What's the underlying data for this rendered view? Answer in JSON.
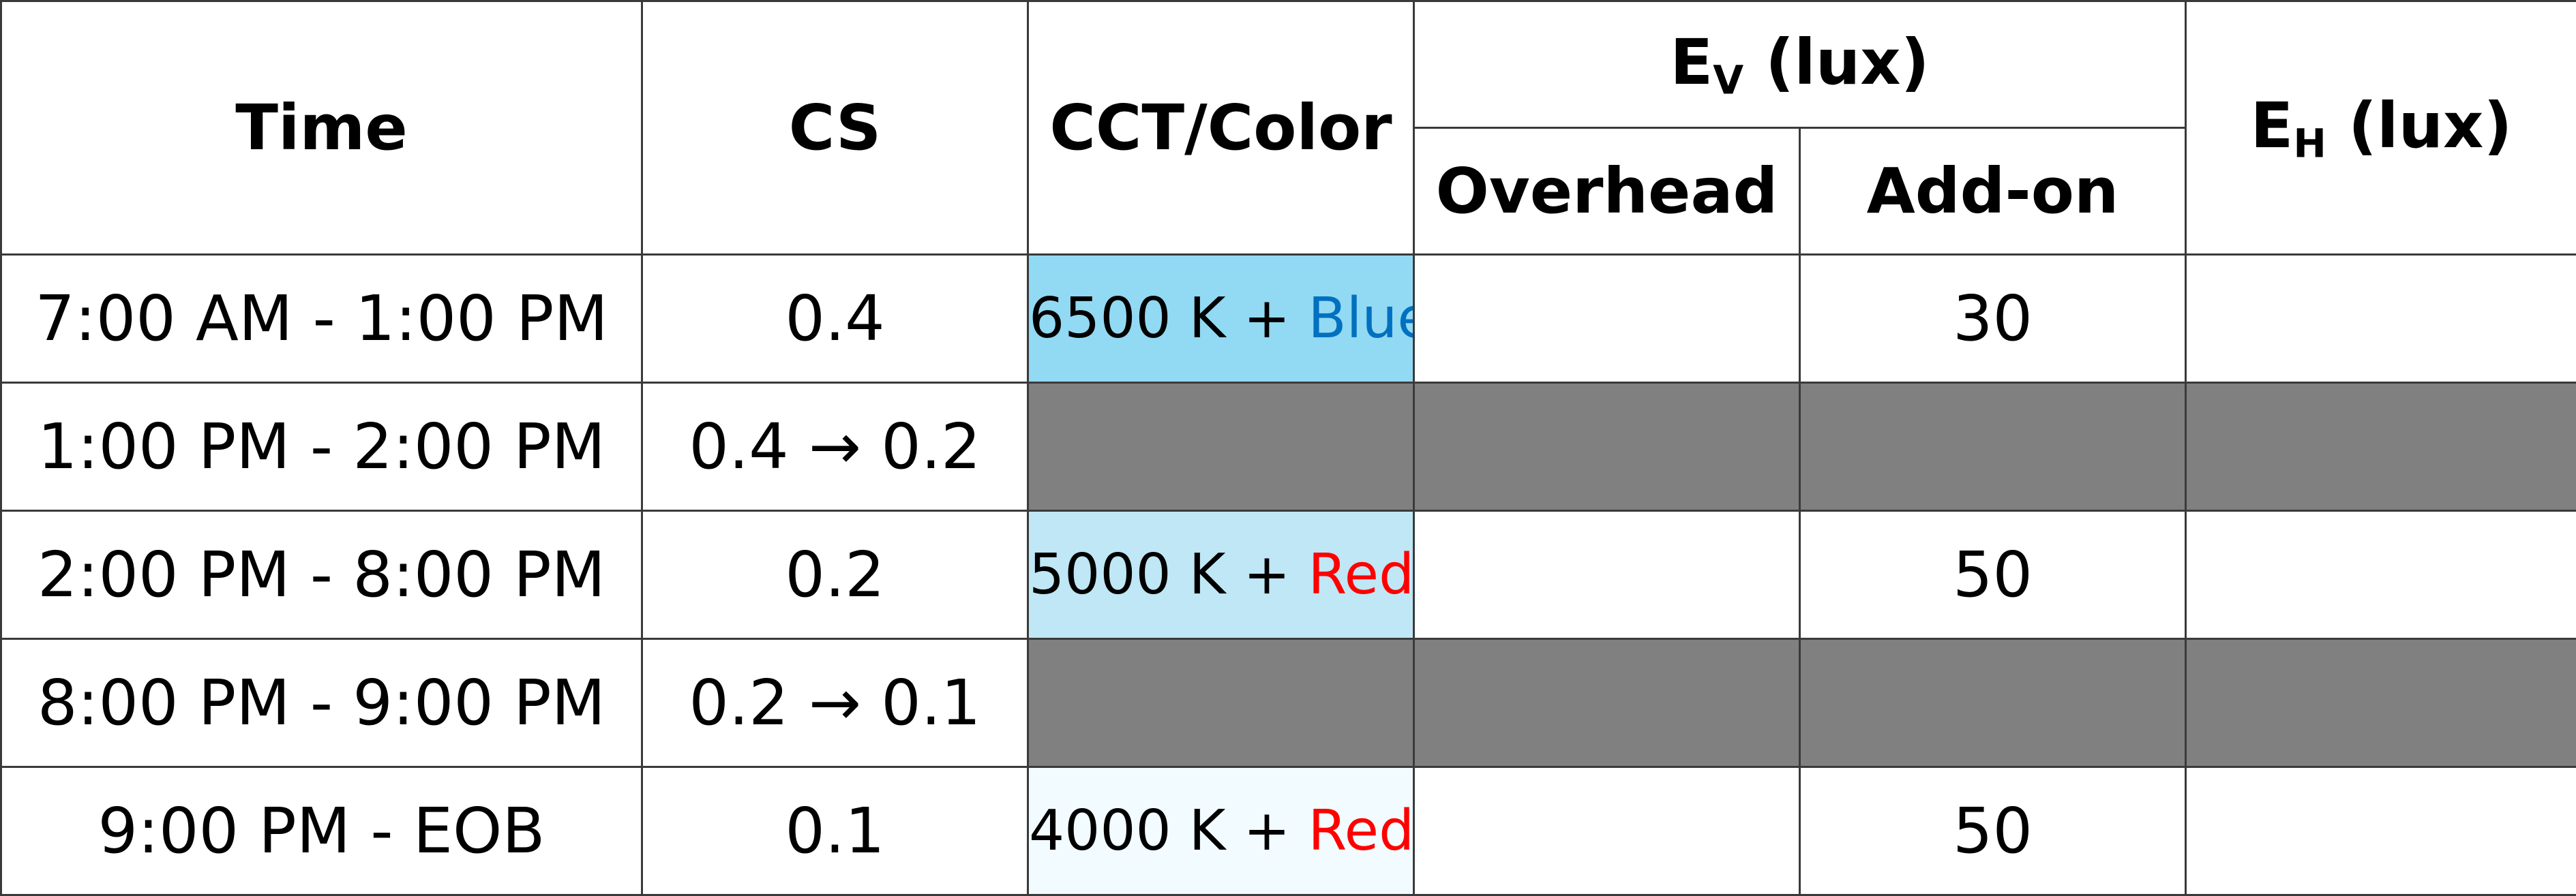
{
  "header": {
    "time": "Time",
    "cs": "CS",
    "cct": "CCT/Color",
    "ev_base": "E",
    "ev_sub": "V",
    "ev_unit": " (lux)",
    "overhead": "Overhead",
    "addon": "Add-on",
    "eh_base": "E",
    "eh_sub": "H",
    "eh_unit": " (lux)"
  },
  "rows": [
    {
      "time": "7:00 AM - 1:00 PM",
      "cs": "0.4",
      "cct_k": "6500 K + ",
      "cct_color": "Blue",
      "cct_color_hex": "#0070c0",
      "cell_bg": "#92d9f3",
      "overhead": "",
      "addon": "30",
      "eh": "",
      "grey": false
    },
    {
      "time": "1:00 PM - 2:00 PM",
      "cs": "0.4 → 0.2",
      "cct_k": "",
      "cct_color": "",
      "overhead": "",
      "addon": "",
      "eh": "",
      "grey": true
    },
    {
      "time": "2:00 PM - 8:00 PM",
      "cs": "0.2",
      "cct_k": "5000 K + ",
      "cct_color": "Red",
      "cct_color_hex": "#ff0000",
      "cell_bg": "#bfe7f6",
      "overhead": "",
      "addon": "50",
      "eh": "",
      "grey": false
    },
    {
      "time": "8:00 PM - 9:00 PM",
      "cs": "0.2 → 0.1",
      "cct_k": "",
      "cct_color": "",
      "overhead": "",
      "addon": "",
      "eh": "",
      "grey": true
    },
    {
      "time": "9:00 PM - EOB",
      "cs": "0.1",
      "cct_k": "4000 K + ",
      "cct_color": "Red",
      "cct_color_hex": "#ff0000",
      "cell_bg": "#f2fbff",
      "overhead": "",
      "addon": "50",
      "eh": "",
      "grey": false
    }
  ],
  "colors": {
    "grey_fill": "#808080",
    "border": "#3a3a3a"
  }
}
